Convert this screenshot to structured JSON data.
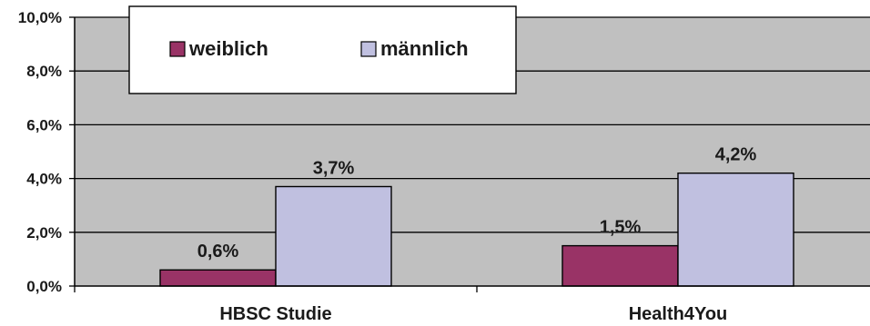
{
  "chart_data": {
    "type": "bar",
    "categories": [
      "HBSC Studie",
      "Health4You"
    ],
    "series": [
      {
        "name": "weiblich",
        "values": [
          0.6,
          1.5
        ],
        "labels": [
          "0,6%",
          "1,5%"
        ],
        "color": "#993366"
      },
      {
        "name": "männlich",
        "values": [
          3.7,
          4.2
        ],
        "labels": [
          "3,7%",
          "4,2%"
        ],
        "color": "#C0C0E0"
      }
    ],
    "ylim": [
      0,
      10
    ],
    "yticks": [
      0,
      2,
      4,
      6,
      8,
      10
    ],
    "ytick_labels": [
      "0,0%",
      "2,0%",
      "4,0%",
      "6,0%",
      "8,0%",
      "10,0%"
    ],
    "xlabel": "",
    "ylabel": "",
    "title": "",
    "grid": true,
    "legend_position": "top-left",
    "plot_background": "#C0C0C0"
  }
}
